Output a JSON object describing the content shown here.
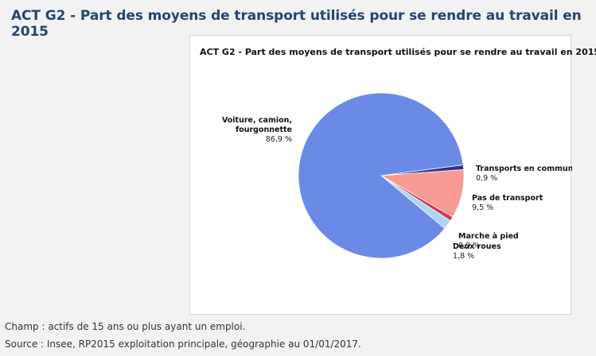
{
  "page": {
    "title": "ACT G2 - Part des moyens de transport utilisés pour se rendre au travail en 2015"
  },
  "notes": {
    "champ": "Champ : actifs de 15 ans ou plus ayant un emploi.",
    "source": "Source : Insee, RP2015 exploitation principale, géographie au 01/01/2017."
  },
  "chart_data": {
    "type": "pie",
    "title": "ACT G2 - Part des moyens de transport utilisés pour se rendre au travail en 2015",
    "slices": [
      {
        "name": "Transports en commun",
        "value": 0.9,
        "label": "0,9 %",
        "color": "#2b2f8f"
      },
      {
        "name": "Pas de transport",
        "value": 9.5,
        "label": "9,5 %",
        "color": "#f79b93"
      },
      {
        "name": "Marche à pied",
        "value": 0.9,
        "label": "0,9 %",
        "color": "#d23a5e"
      },
      {
        "name": "Deux roues",
        "value": 1.8,
        "label": "1,8 %",
        "color": "#a9d6f2"
      },
      {
        "name": "Voiture, camion, fourgonnette",
        "value": 86.9,
        "label": "86,9 %",
        "color": "#6b8ae6"
      }
    ]
  }
}
